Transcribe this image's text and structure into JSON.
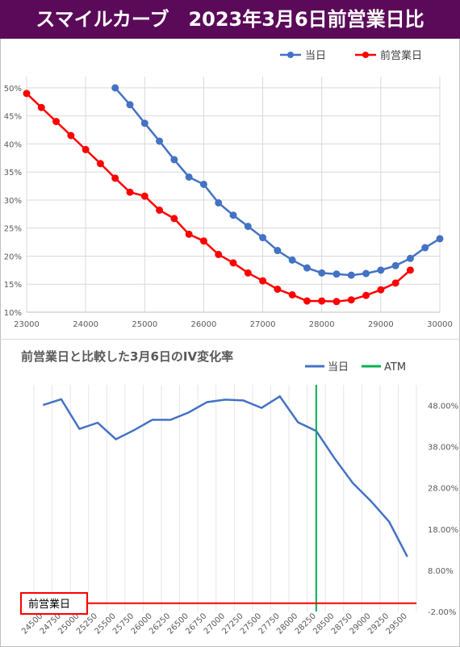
{
  "banner": {
    "title": "スマイルカーブ　2023年3月6日前営業日比",
    "background": "#5b0a59"
  },
  "chart_data": [
    {
      "type": "line",
      "legend_position": "top-right",
      "grid": true,
      "xlim": [
        23000,
        30000
      ],
      "ylim": [
        0.1,
        0.52
      ],
      "x_ticks": [
        "23000",
        "24000",
        "25000",
        "26000",
        "27000",
        "28000",
        "29000",
        "30000"
      ],
      "x_tick_values": [
        23000,
        24000,
        25000,
        26000,
        27000,
        28000,
        29000,
        30000
      ],
      "y_ticks": [
        "10%",
        "15%",
        "20%",
        "25%",
        "30%",
        "35%",
        "40%",
        "45%",
        "50%"
      ],
      "y_tick_values": [
        0.1,
        0.15,
        0.2,
        0.25,
        0.3,
        0.35,
        0.4,
        0.45,
        0.5
      ],
      "series": [
        {
          "name": "当日",
          "color": "#4472c4",
          "points": [
            [
              24500,
              0.5
            ],
            [
              24750,
              0.47
            ],
            [
              25000,
              0.437
            ],
            [
              25250,
              0.405
            ],
            [
              25500,
              0.372
            ],
            [
              25750,
              0.341
            ],
            [
              26000,
              0.328
            ],
            [
              26250,
              0.295
            ],
            [
              26500,
              0.273
            ],
            [
              26750,
              0.253
            ],
            [
              27000,
              0.233
            ],
            [
              27250,
              0.21
            ],
            [
              27500,
              0.193
            ],
            [
              27750,
              0.179
            ],
            [
              28000,
              0.17
            ],
            [
              28250,
              0.168
            ],
            [
              28500,
              0.166
            ],
            [
              28750,
              0.169
            ],
            [
              29000,
              0.175
            ],
            [
              29250,
              0.183
            ],
            [
              29500,
              0.196
            ],
            [
              29750,
              0.215
            ],
            [
              30000,
              0.231
            ]
          ]
        },
        {
          "name": "前営業日",
          "color": "#ff0000",
          "points": [
            [
              23000,
              0.49
            ],
            [
              23250,
              0.465
            ],
            [
              23500,
              0.44
            ],
            [
              23750,
              0.415
            ],
            [
              24000,
              0.39
            ],
            [
              24250,
              0.365
            ],
            [
              24500,
              0.339
            ],
            [
              24750,
              0.314
            ],
            [
              25000,
              0.307
            ],
            [
              25250,
              0.282
            ],
            [
              25500,
              0.267
            ],
            [
              25750,
              0.239
            ],
            [
              26000,
              0.227
            ],
            [
              26250,
              0.203
            ],
            [
              26500,
              0.188
            ],
            [
              26750,
              0.17
            ],
            [
              27000,
              0.156
            ],
            [
              27250,
              0.141
            ],
            [
              27500,
              0.131
            ],
            [
              27750,
              0.12
            ],
            [
              28000,
              0.12
            ],
            [
              28250,
              0.119
            ],
            [
              28500,
              0.122
            ],
            [
              28750,
              0.13
            ],
            [
              29000,
              0.14
            ],
            [
              29250,
              0.152
            ],
            [
              29500,
              0.175
            ]
          ]
        }
      ]
    },
    {
      "type": "line",
      "title": "前営業日と比較した3月6日のIV変化率",
      "legend_position": "top-right",
      "grid": true,
      "ylim": [
        -0.02,
        0.53
      ],
      "y_ticks": [
        "48.00%",
        "38.00%",
        "28.00%",
        "18.00%",
        "8.00%",
        "-2.00%"
      ],
      "y_tick_values": [
        0.48,
        0.38,
        0.28,
        0.18,
        0.08,
        -0.02
      ],
      "categories": [
        "24500",
        "24750",
        "25000",
        "25250",
        "25500",
        "25750",
        "26000",
        "26250",
        "26500",
        "26750",
        "27000",
        "27250",
        "27500",
        "27750",
        "28000",
        "28250",
        "28500",
        "28750",
        "29000",
        "29250",
        "29500"
      ],
      "series": [
        {
          "name": "当日",
          "color": "#4472c4",
          "values": [
            0.481,
            0.495,
            0.423,
            0.438,
            0.398,
            0.42,
            0.445,
            0.445,
            0.463,
            0.488,
            0.494,
            0.492,
            0.474,
            0.502,
            0.439,
            0.418,
            0.352,
            0.292,
            0.248,
            0.198,
            0.113
          ]
        },
        {
          "name": "ATM",
          "color": "#00b050",
          "at_category": "28250"
        }
      ],
      "baseline": {
        "label": "前営業日",
        "value": 0,
        "color": "#ff0000"
      }
    }
  ]
}
